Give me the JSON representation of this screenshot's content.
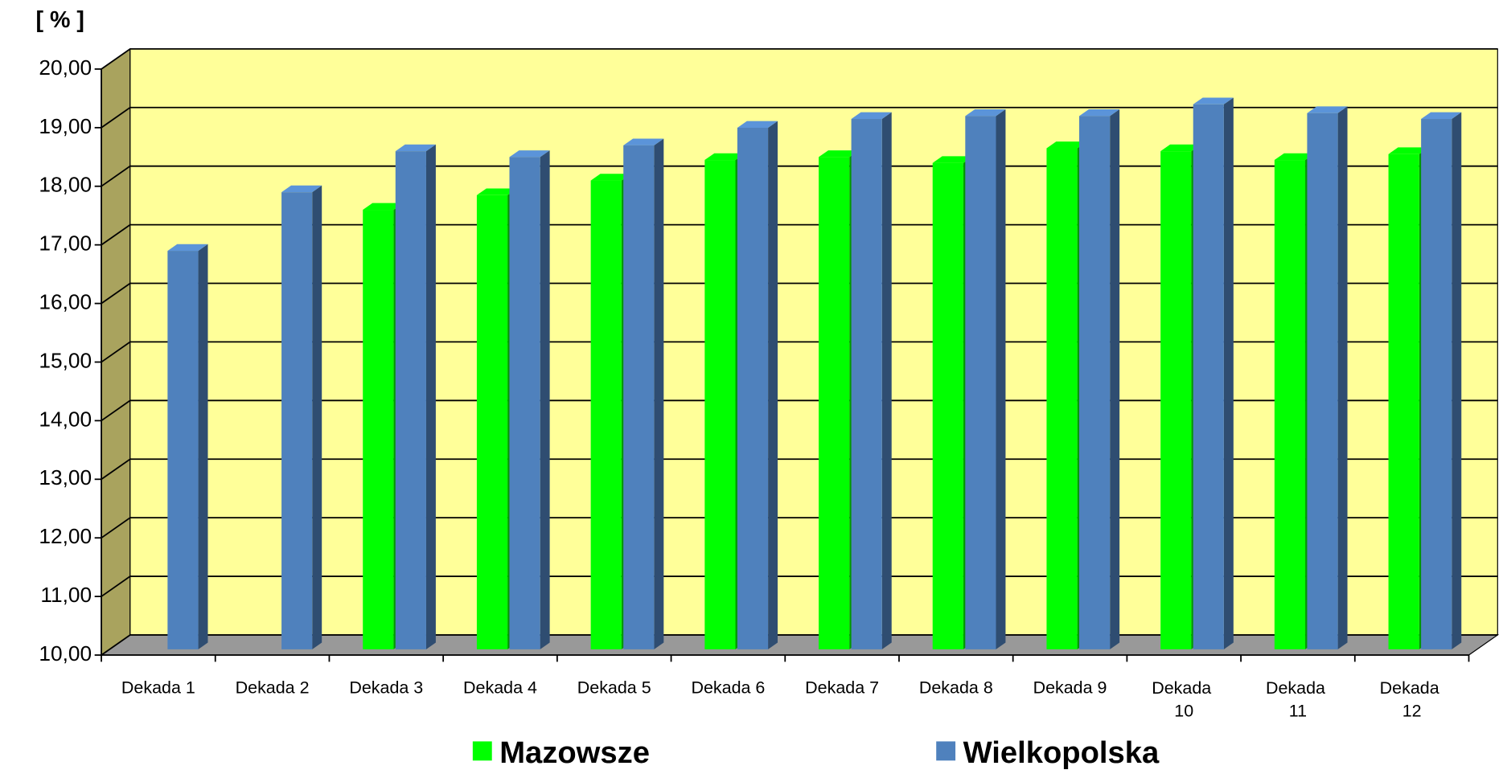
{
  "chart_data": {
    "type": "bar3d",
    "y_label": "[ % ]",
    "categories": [
      "Dekada 1",
      "Dekada 2",
      "Dekada 3",
      "Dekada 4",
      "Dekada 5",
      "Dekada 6",
      "Dekada 7",
      "Dekada 8",
      "Dekada 9",
      "Dekada 10",
      "Dekada 11",
      "Dekada 12"
    ],
    "series": [
      {
        "name": "Mazowsze",
        "color": "#00ff00",
        "values": [
          null,
          null,
          17.5,
          17.75,
          18.0,
          18.35,
          18.4,
          18.3,
          18.55,
          18.5,
          18.35,
          18.45
        ]
      },
      {
        "name": "Wielkopolska",
        "color": "#4f81bd",
        "values": [
          16.8,
          17.8,
          18.5,
          18.4,
          18.6,
          18.9,
          19.05,
          19.1,
          19.1,
          19.3,
          19.15,
          19.05
        ]
      }
    ],
    "ylim": [
      10,
      20
    ],
    "yticks": [
      {
        "value": 10,
        "label": "10,00"
      },
      {
        "value": 11,
        "label": "11,00"
      },
      {
        "value": 12,
        "label": "12,00"
      },
      {
        "value": 13,
        "label": "13,00"
      },
      {
        "value": 14,
        "label": "14,00"
      },
      {
        "value": 15,
        "label": "15,00"
      },
      {
        "value": 16,
        "label": "16,00"
      },
      {
        "value": 17,
        "label": "17,00"
      },
      {
        "value": 18,
        "label": "18,00"
      },
      {
        "value": 19,
        "label": "19,00"
      },
      {
        "value": 20,
        "label": "20,00"
      }
    ],
    "grid": true,
    "legend": "bottom"
  }
}
